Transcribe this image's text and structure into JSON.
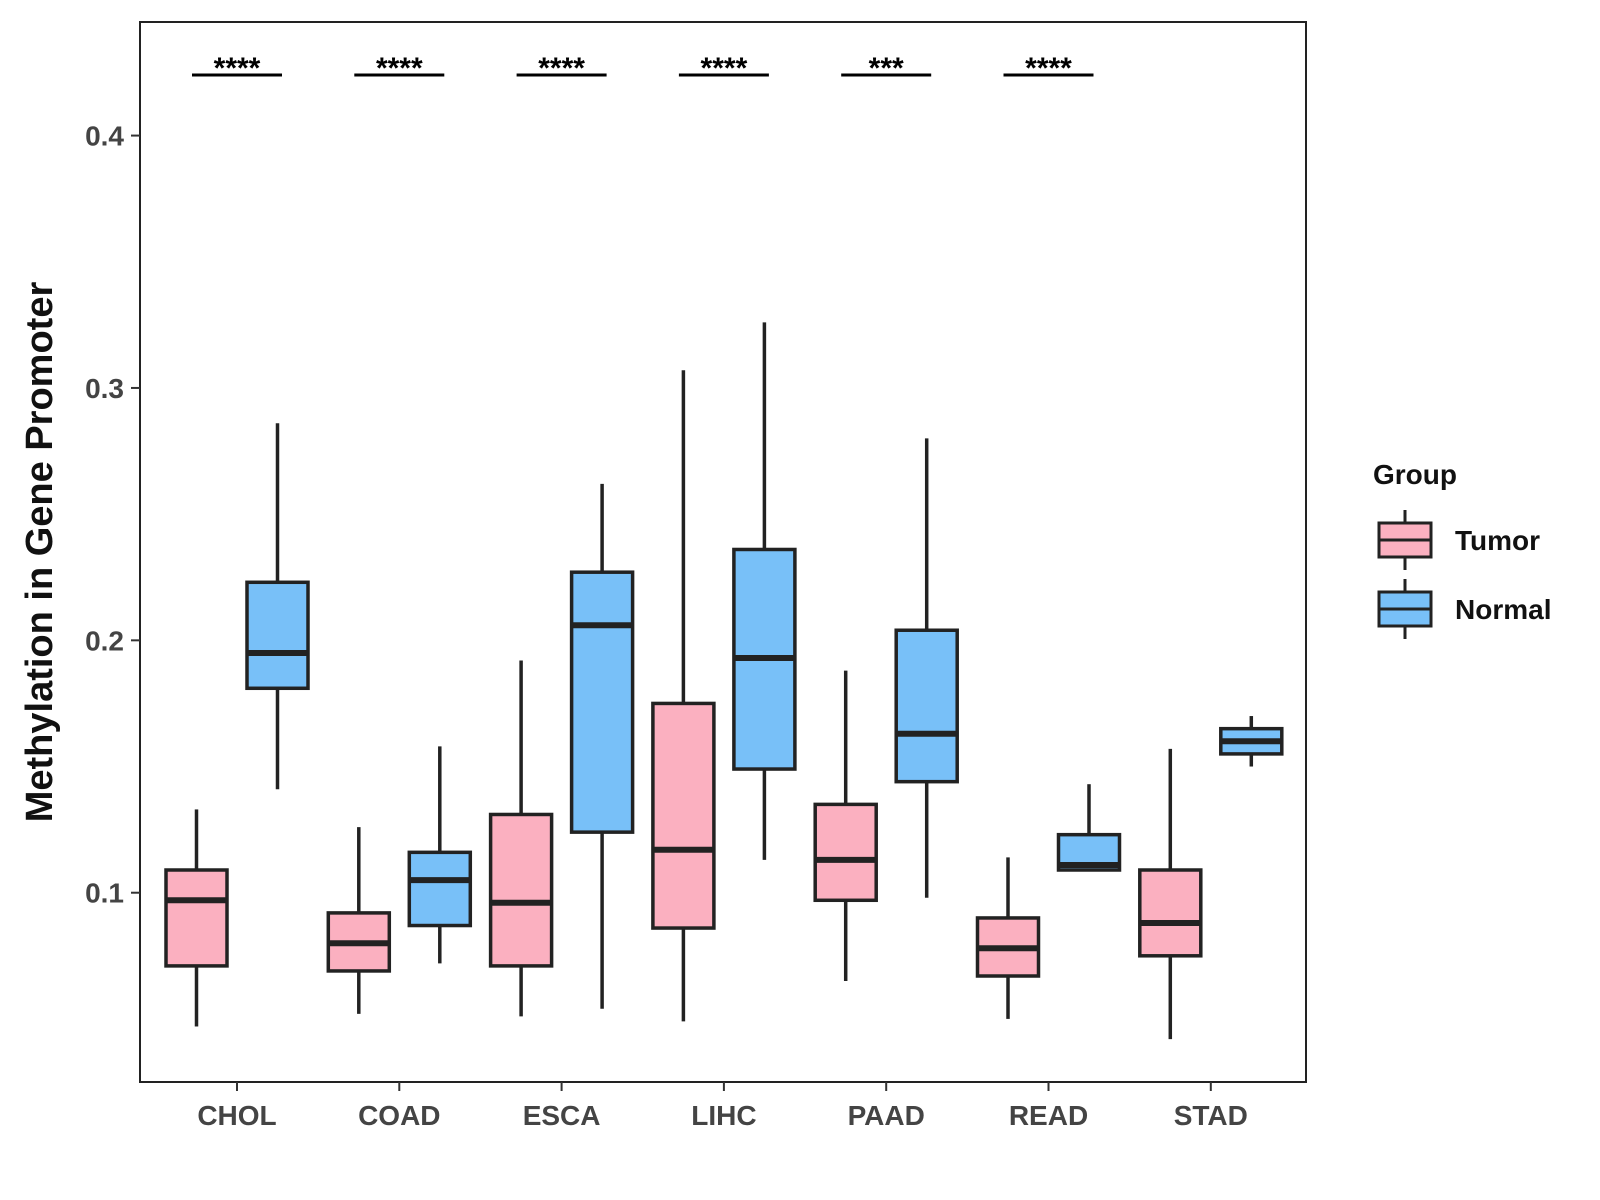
{
  "chart_data": {
    "type": "boxplot",
    "title": "",
    "xlabel": "",
    "ylabel": "Methylation in Gene Promoter",
    "ylim": [
      0.025,
      0.445
    ],
    "yticks": [
      0.1,
      0.2,
      0.3,
      0.4
    ],
    "ytick_labels": [
      "0.1",
      "0.2",
      "0.3",
      "0.4"
    ],
    "grid": false,
    "legend_position": "right",
    "legend": {
      "title": "Group",
      "entries": [
        {
          "name": "Tumor",
          "color": "#FBB0C0"
        },
        {
          "name": "Normal",
          "color": "#78C0F8"
        }
      ]
    },
    "categories": [
      "CHOL",
      "COAD",
      "ESCA",
      "LIHC",
      "PAAD",
      "READ",
      "STAD"
    ],
    "significance": [
      "****",
      "****",
      "****",
      "****",
      "***",
      "****",
      ""
    ],
    "series": [
      {
        "name": "Tumor",
        "color": "#FBB0C0",
        "boxes": [
          {
            "whisker_low": 0.047,
            "q1": 0.071,
            "median": 0.097,
            "q3": 0.109,
            "whisker_high": 0.133
          },
          {
            "whisker_low": 0.052,
            "q1": 0.069,
            "median": 0.08,
            "q3": 0.092,
            "whisker_high": 0.126
          },
          {
            "whisker_low": 0.051,
            "q1": 0.071,
            "median": 0.096,
            "q3": 0.131,
            "whisker_high": 0.192
          },
          {
            "whisker_low": 0.049,
            "q1": 0.086,
            "median": 0.117,
            "q3": 0.175,
            "whisker_high": 0.307
          },
          {
            "whisker_low": 0.065,
            "q1": 0.097,
            "median": 0.113,
            "q3": 0.135,
            "whisker_high": 0.188
          },
          {
            "whisker_low": 0.05,
            "q1": 0.067,
            "median": 0.078,
            "q3": 0.09,
            "whisker_high": 0.114
          },
          {
            "whisker_low": 0.042,
            "q1": 0.075,
            "median": 0.088,
            "q3": 0.109,
            "whisker_high": 0.157
          }
        ]
      },
      {
        "name": "Normal",
        "color": "#78C0F8",
        "boxes": [
          {
            "whisker_low": 0.141,
            "q1": 0.181,
            "median": 0.195,
            "q3": 0.223,
            "whisker_high": 0.286
          },
          {
            "whisker_low": 0.072,
            "q1": 0.087,
            "median": 0.105,
            "q3": 0.116,
            "whisker_high": 0.158
          },
          {
            "whisker_low": 0.054,
            "q1": 0.124,
            "median": 0.206,
            "q3": 0.227,
            "whisker_high": 0.262
          },
          {
            "whisker_low": 0.113,
            "q1": 0.149,
            "median": 0.193,
            "q3": 0.236,
            "whisker_high": 0.326
          },
          {
            "whisker_low": 0.098,
            "q1": 0.144,
            "median": 0.163,
            "q3": 0.204,
            "whisker_high": 0.28
          },
          {
            "whisker_low": 0.109,
            "q1": 0.109,
            "median": 0.111,
            "q3": 0.123,
            "whisker_high": 0.143
          },
          {
            "whisker_low": 0.15,
            "q1": 0.155,
            "median": 0.16,
            "q3": 0.165,
            "whisker_high": 0.17
          }
        ]
      }
    ]
  }
}
